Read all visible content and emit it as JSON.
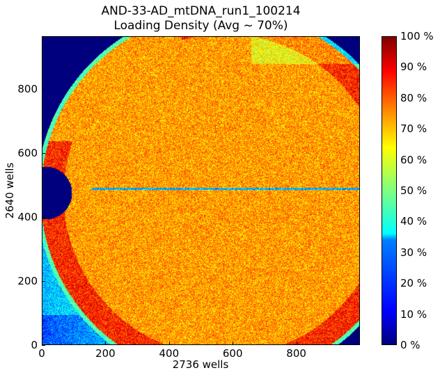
{
  "chart_data": {
    "type": "heatmap",
    "title": "AND-33-AD_mtDNA_run1_100214",
    "subtitle": "Loading Density (Avg ~ 70%)",
    "xlabel": "2736 wells",
    "ylabel": "2640 wells",
    "xlim": [
      0,
      1000
    ],
    "ylim": [
      0,
      965
    ],
    "x_ticks": [
      "0",
      "200",
      "400",
      "600",
      "800"
    ],
    "y_ticks": [
      "0",
      "200",
      "400",
      "600",
      "800"
    ],
    "colormap": "jet",
    "colorbar": {
      "range": [
        0,
        100
      ],
      "ticks": [
        "0 %",
        "10 %",
        "20 %",
        "30 %",
        "40 %",
        "50 %",
        "60 %",
        "70 %",
        "80 %",
        "90 %",
        "100 %"
      ]
    },
    "average_loading_percent": 70,
    "background_color": "#00007f"
  }
}
